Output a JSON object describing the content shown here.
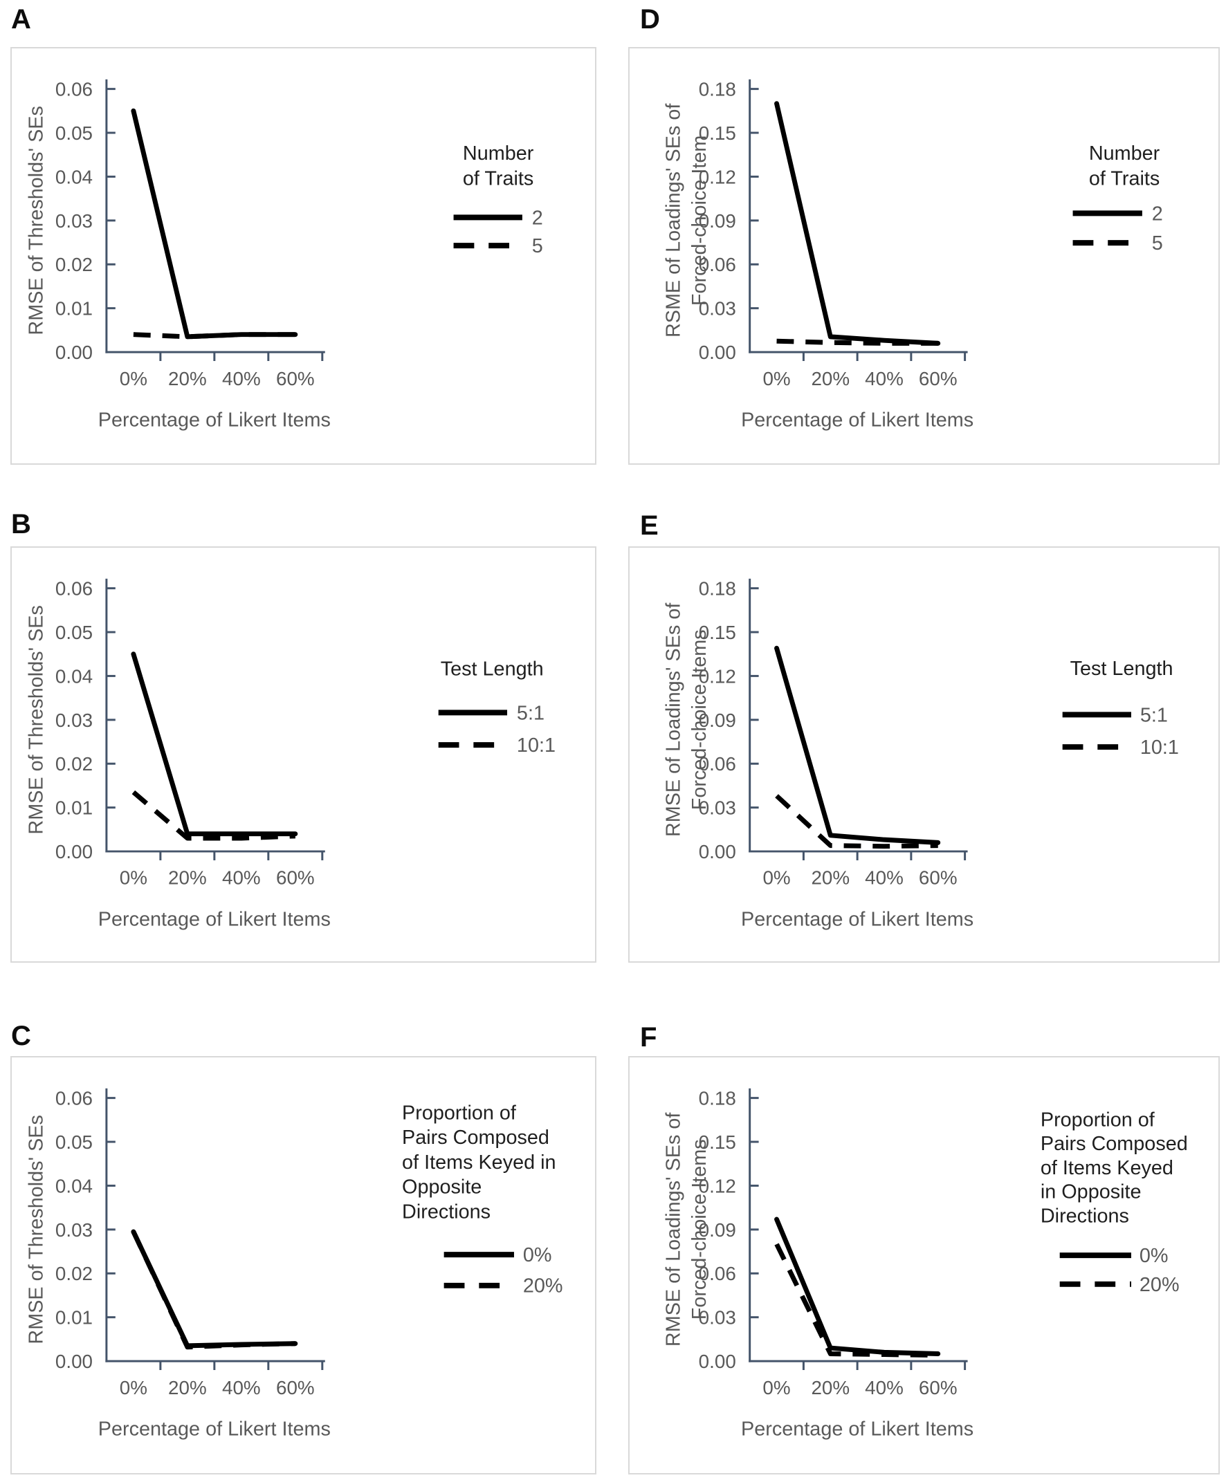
{
  "figure": {
    "description": "Six line charts (A-F) showing RMSE of thresholds' and loadings' standard errors by percentage of Likert items",
    "colors": {
      "axis": "#44546A",
      "tick_text": "#595959",
      "line": "#000000",
      "legend_title": "#1f1f1f",
      "legend_label": "#595959",
      "panel_border": "#d9d9d9"
    }
  },
  "panels": [
    {
      "id": "A",
      "label": "A",
      "chart_data": {
        "type": "line",
        "categories": [
          "0%",
          "20%",
          "40%",
          "60%"
        ],
        "xlabel": "Percentage of Likert Items",
        "ylabel_lines": [
          "RMSE of Thresholds' SEs"
        ],
        "ylim": [
          0,
          0.06
        ],
        "yticks": [
          "0.00",
          "0.01",
          "0.02",
          "0.03",
          "0.04",
          "0.05",
          "0.06"
        ],
        "grid": false,
        "legend_position": "right",
        "legend_title_lines": [
          "Number",
          "of Traits"
        ],
        "series": [
          {
            "name": "2",
            "style": "solid",
            "values": [
              0.055,
              0.0035,
              0.004,
              0.004
            ]
          },
          {
            "name": "5",
            "style": "dashed",
            "values": [
              0.004,
              0.0035,
              0.004,
              0.004
            ]
          }
        ]
      }
    },
    {
      "id": "B",
      "label": "B",
      "chart_data": {
        "type": "line",
        "categories": [
          "0%",
          "20%",
          "40%",
          "60%"
        ],
        "xlabel": "Percentage of Likert Items",
        "ylabel_lines": [
          "RMSE of Thresholds' SEs"
        ],
        "ylim": [
          0,
          0.06
        ],
        "yticks": [
          "0.00",
          "0.01",
          "0.02",
          "0.03",
          "0.04",
          "0.05",
          "0.06"
        ],
        "grid": false,
        "legend_position": "right",
        "legend_title_lines": [
          "Test Length"
        ],
        "series": [
          {
            "name": "5:1",
            "style": "solid",
            "values": [
              0.045,
              0.004,
              0.004,
              0.004
            ]
          },
          {
            "name": "10:1",
            "style": "dashed",
            "values": [
              0.0135,
              0.003,
              0.003,
              0.0035
            ]
          }
        ]
      }
    },
    {
      "id": "C",
      "label": "C",
      "chart_data": {
        "type": "line",
        "categories": [
          "0%",
          "20%",
          "40%",
          "60%"
        ],
        "xlabel": "Percentage of Likert Items",
        "ylabel_lines": [
          "RMSE of Thresholds' SEs"
        ],
        "ylim": [
          0,
          0.06
        ],
        "yticks": [
          "0.00",
          "0.01",
          "0.02",
          "0.03",
          "0.04",
          "0.05",
          "0.06"
        ],
        "grid": false,
        "legend_position": "right",
        "legend_title_lines": [
          "Proportion of",
          "Pairs Composed",
          "of Items Keyed in",
          "Opposite",
          "Directions"
        ],
        "series": [
          {
            "name": "0%",
            "style": "solid",
            "values": [
              0.0295,
              0.0035,
              0.0038,
              0.004
            ]
          },
          {
            "name": "20%",
            "style": "dashed",
            "values": [
              0.0295,
              0.0032,
              0.0037,
              0.004
            ]
          }
        ]
      }
    },
    {
      "id": "D",
      "label": "D",
      "chart_data": {
        "type": "line",
        "categories": [
          "0%",
          "20%",
          "40%",
          "60%"
        ],
        "xlabel": "Percentage of Likert Items",
        "ylabel_lines": [
          "RSME of Loadings' SEs of",
          "Forced-choice Item"
        ],
        "ylim": [
          0,
          0.18
        ],
        "yticks": [
          "0.00",
          "0.03",
          "0.06",
          "0.09",
          "0.12",
          "0.15",
          "0.18"
        ],
        "grid": false,
        "legend_position": "right",
        "legend_title_lines": [
          "Number",
          "of Traits"
        ],
        "series": [
          {
            "name": "2",
            "style": "solid",
            "values": [
              0.17,
              0.0105,
              0.008,
              0.006
            ]
          },
          {
            "name": "5",
            "style": "dashed",
            "values": [
              0.0075,
              0.0065,
              0.006,
              0.006
            ]
          }
        ]
      }
    },
    {
      "id": "E",
      "label": "E",
      "chart_data": {
        "type": "line",
        "categories": [
          "0%",
          "20%",
          "40%",
          "60%"
        ],
        "xlabel": "Percentage of Likert Items",
        "ylabel_lines": [
          "RMSE of Loadings' SEs of",
          "Forced-choice Items"
        ],
        "ylim": [
          0,
          0.18
        ],
        "yticks": [
          "0.00",
          "0.03",
          "0.06",
          "0.09",
          "0.12",
          "0.15",
          "0.18"
        ],
        "grid": false,
        "legend_position": "right",
        "legend_title_lines": [
          "Test Length"
        ],
        "series": [
          {
            "name": "5:1",
            "style": "solid",
            "values": [
              0.139,
              0.011,
              0.008,
              0.006
            ]
          },
          {
            "name": "10:1",
            "style": "dashed",
            "values": [
              0.038,
              0.004,
              0.0035,
              0.004
            ]
          }
        ]
      }
    },
    {
      "id": "F",
      "label": "F",
      "chart_data": {
        "type": "line",
        "categories": [
          "0%",
          "20%",
          "40%",
          "60%"
        ],
        "xlabel": "Percentage of Likert Items",
        "ylabel_lines": [
          "RMSE of Loadings' SEs of",
          "Forced-choice Items"
        ],
        "ylim": [
          0,
          0.18
        ],
        "yticks": [
          "0.00",
          "0.03",
          "0.06",
          "0.09",
          "0.12",
          "0.15",
          "0.18"
        ],
        "grid": false,
        "legend_position": "right",
        "legend_title_lines": [
          "Proportion of",
          "Pairs Composed",
          "of Items Keyed",
          "in Opposite",
          "Directions"
        ],
        "series": [
          {
            "name": "0%",
            "style": "solid",
            "values": [
              0.097,
              0.009,
              0.006,
              0.005
            ]
          },
          {
            "name": "20%",
            "style": "dashed",
            "values": [
              0.08,
              0.005,
              0.0045,
              0.004
            ]
          }
        ]
      }
    }
  ]
}
